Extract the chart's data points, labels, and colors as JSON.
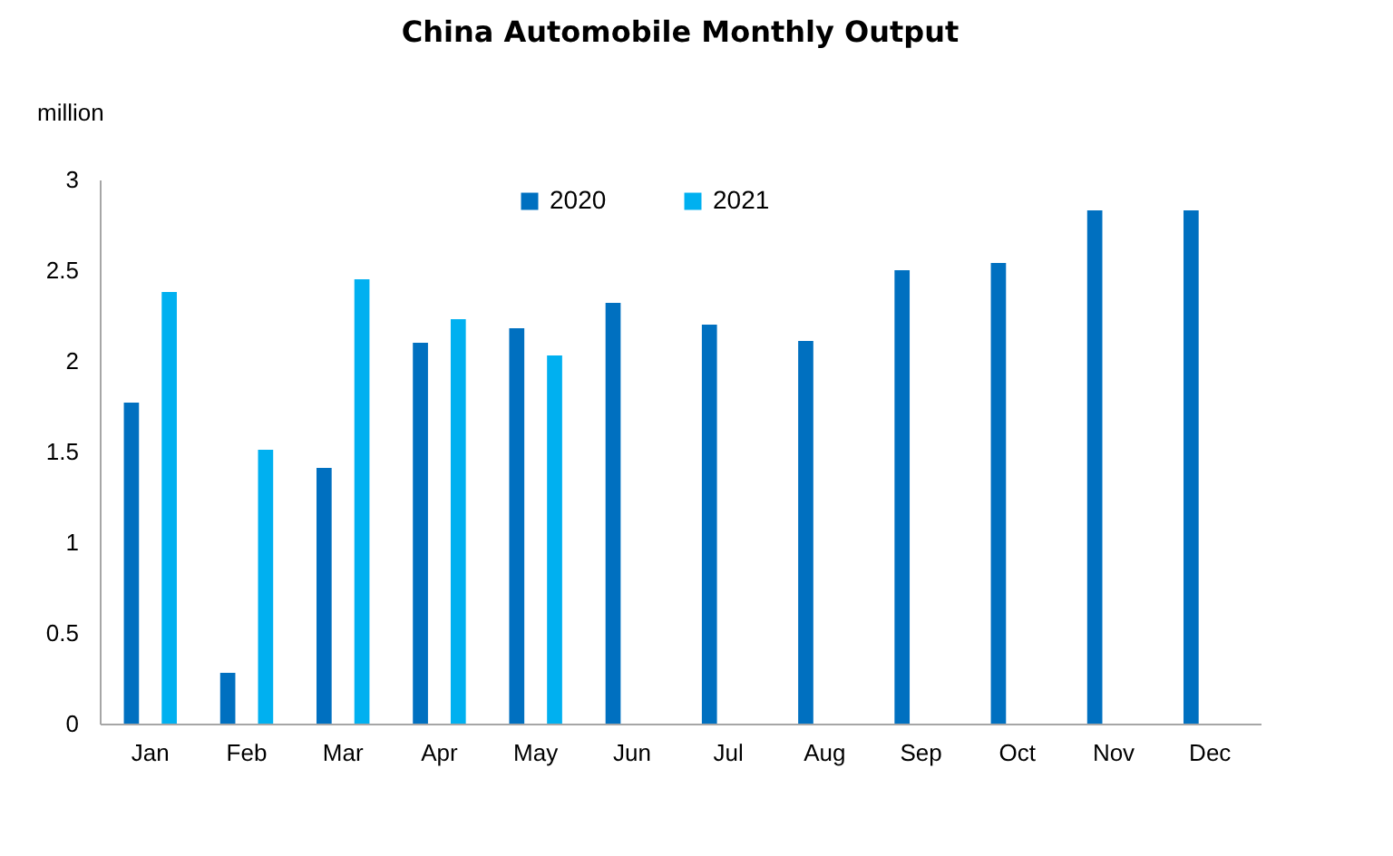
{
  "chart_data": {
    "type": "bar",
    "title": "China Automobile Monthly Output",
    "ylabel": "million",
    "categories": [
      "Jan",
      "Feb",
      "Mar",
      "Apr",
      "May",
      "Jun",
      "Jul",
      "Aug",
      "Sep",
      "Oct",
      "Nov",
      "Dec"
    ],
    "series": [
      {
        "name": "2020",
        "color": "#0070c0",
        "values": [
          1.77,
          0.28,
          1.41,
          2.1,
          2.18,
          2.32,
          2.2,
          2.11,
          2.5,
          2.54,
          2.83,
          2.83
        ]
      },
      {
        "name": "2021",
        "color": "#00b0f0",
        "values": [
          2.38,
          1.51,
          2.45,
          2.23,
          2.03,
          null,
          null,
          null,
          null,
          null,
          null,
          null
        ]
      }
    ],
    "ylim": [
      0,
      3
    ],
    "yticks": [
      0,
      0.5,
      1,
      1.5,
      2,
      2.5,
      3
    ],
    "grid": false,
    "legend": "top"
  }
}
